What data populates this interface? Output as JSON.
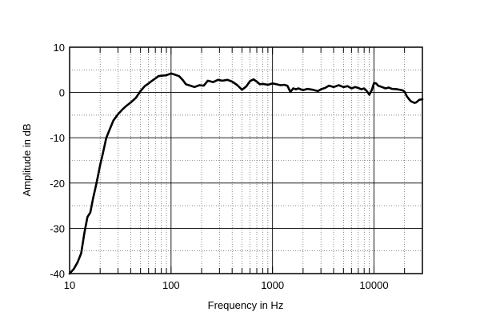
{
  "chart_data": {
    "type": "line",
    "title": "",
    "xlabel": "Frequency in Hz",
    "ylabel": "Amplitude in dB",
    "x_scale": "log",
    "xlim": [
      10,
      30000
    ],
    "ylim": [
      -40,
      10
    ],
    "grid": true,
    "x_ticks": [
      10,
      100,
      1000,
      10000
    ],
    "x_tick_labels": [
      "10",
      "100",
      "1000",
      "10000"
    ],
    "y_ticks": [
      10,
      0,
      -10,
      -20,
      -30,
      -40
    ],
    "y_tick_labels": [
      "10",
      "0",
      "-10",
      "-20",
      "-30",
      "-40"
    ],
    "line_color": "#000000",
    "series": [
      {
        "x": [
          10,
          11,
          12,
          13,
          14,
          15,
          16,
          17,
          18,
          19,
          20,
          21,
          22,
          23,
          25,
          27,
          30,
          33,
          36,
          40,
          45,
          50,
          55,
          60,
          65,
          70,
          75,
          80,
          90,
          100,
          110,
          120,
          130,
          140,
          150,
          170,
          190,
          210,
          230,
          260,
          290,
          320,
          360,
          400,
          450,
          500,
          550,
          600,
          650,
          700,
          750,
          800,
          900,
          1000,
          1100,
          1200,
          1300,
          1400,
          1500,
          1600,
          1700,
          1800,
          2000,
          2200,
          2500,
          2800,
          3000,
          3300,
          3600,
          4000,
          4500,
          5000,
          5500,
          6000,
          6500,
          7000,
          7500,
          8000,
          8500,
          9000,
          9500,
          10000,
          10500,
          11000,
          12000,
          13000,
          14000,
          15000,
          17000,
          19000,
          20000,
          21000,
          22000,
          23000,
          24000,
          25000,
          26000,
          27000,
          28000,
          30000
        ],
        "values": [
          -40,
          -39,
          -37.5,
          -35.5,
          -31,
          -27.5,
          -26.5,
          -23.5,
          -21,
          -18.5,
          -16,
          -14,
          -12,
          -10,
          -8,
          -6.2,
          -4.8,
          -3.8,
          -3,
          -2.2,
          -1.2,
          0.3,
          1.4,
          2,
          2.6,
          3.1,
          3.6,
          3.7,
          3.8,
          4.2,
          3.9,
          3.6,
          2.8,
          1.8,
          1.6,
          1.2,
          1.6,
          1.5,
          2.6,
          2.3,
          2.8,
          2.6,
          2.8,
          2.4,
          1.6,
          0.6,
          1.3,
          2.5,
          2.9,
          2.4,
          1.8,
          1.9,
          1.7,
          2.0,
          1.8,
          1.6,
          1.7,
          1.5,
          0.1,
          0.9,
          0.7,
          0.9,
          0.5,
          0.8,
          0.6,
          0.3,
          0.7,
          1.0,
          1.5,
          1.2,
          1.6,
          1.2,
          1.4,
          0.9,
          1.2,
          1.0,
          0.7,
          0.9,
          0.3,
          -0.5,
          0.5,
          2.1,
          2.0,
          1.5,
          1.2,
          0.9,
          1.1,
          0.8,
          0.7,
          0.5,
          0.2,
          -0.8,
          -1.4,
          -1.9,
          -2.1,
          -2.3,
          -2.2,
          -1.9,
          -1.6,
          -1.5
        ]
      }
    ]
  }
}
